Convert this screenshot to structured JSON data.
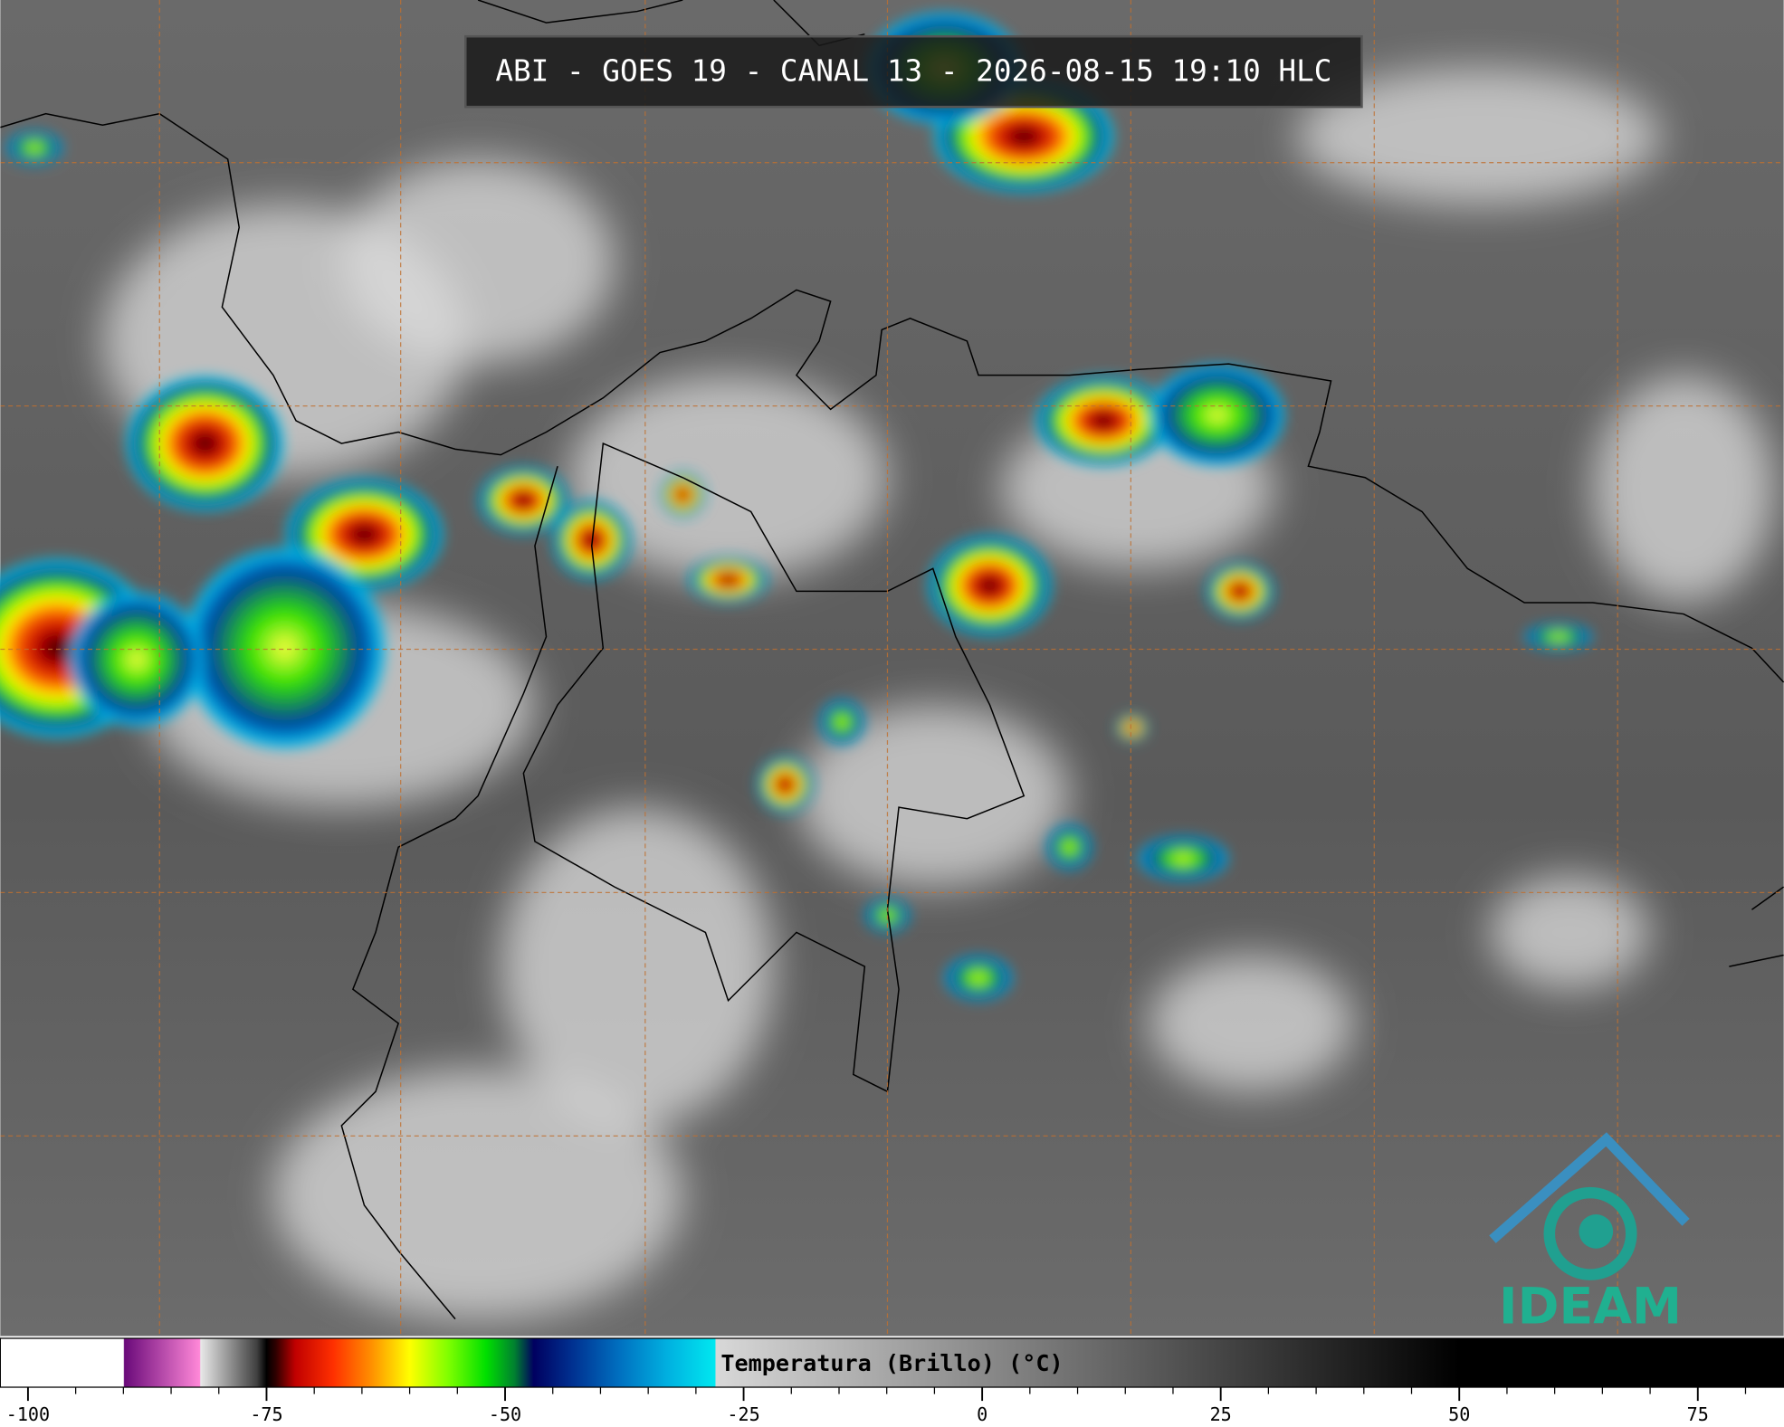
{
  "header": {
    "title": "ABI - GOES 19 - CANAL 13 - 2026-08-15 19:10 HLC"
  },
  "colorbar": {
    "label": "Temperatura (Brillo) (°C)",
    "xlim": [
      -102.9,
      84
    ],
    "xticks": [
      -100,
      -75,
      -50,
      -25,
      0,
      25,
      50,
      75
    ],
    "minor_xticks": [
      -95,
      -90,
      -85,
      -80,
      -70,
      -65,
      -60,
      -55,
      -45,
      -40,
      -35,
      -30,
      -20,
      -15,
      -10,
      -5,
      5,
      10,
      15,
      20,
      30,
      35,
      40,
      45,
      55,
      60,
      65,
      70,
      80
    ],
    "stops": [
      {
        "value": -90,
        "color": "#ffffff"
      },
      {
        "value": -89.9,
        "color": "#6a0a7a"
      },
      {
        "value": -82,
        "color": "#ff88d8"
      },
      {
        "value": -81.9,
        "color": "#e8e8e8"
      },
      {
        "value": -76,
        "color": "#404040"
      },
      {
        "value": -75,
        "color": "#000000"
      },
      {
        "value": -74,
        "color": "#300000"
      },
      {
        "value": -72,
        "color": "#c00000"
      },
      {
        "value": -68,
        "color": "#ff3000"
      },
      {
        "value": -64,
        "color": "#ff9000"
      },
      {
        "value": -60,
        "color": "#ffff00"
      },
      {
        "value": -56,
        "color": "#80ff00"
      },
      {
        "value": -52,
        "color": "#00e000"
      },
      {
        "value": -49,
        "color": "#008030"
      },
      {
        "value": -47,
        "color": "#000060"
      },
      {
        "value": -43,
        "color": "#003090"
      },
      {
        "value": -38,
        "color": "#0070c0"
      },
      {
        "value": -33,
        "color": "#00b0e0"
      },
      {
        "value": -28,
        "color": "#00e8f0"
      },
      {
        "value": -27.9,
        "color": "#d8d8d8"
      },
      {
        "value": 50,
        "color": "#000000"
      }
    ]
  },
  "logo": {
    "text": "IDEAM"
  }
}
